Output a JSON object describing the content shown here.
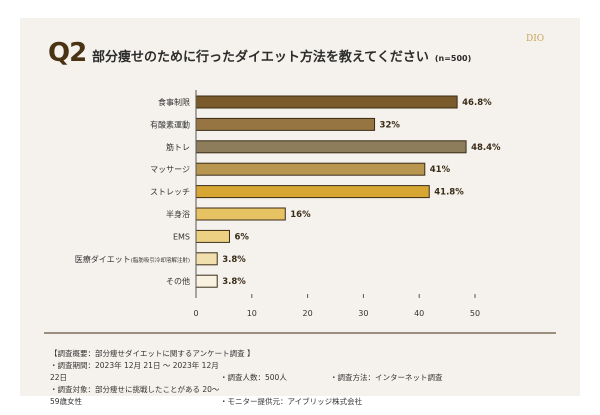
{
  "header": {
    "q": "Q2",
    "title": "部分痩せのために行ったダイエット方法を教えてください",
    "n": "(n=500)",
    "logo": "DIO"
  },
  "chart_data": {
    "type": "bar",
    "orientation": "horizontal",
    "title": "部分痩せのために行ったダイエット方法を教えてください",
    "categories": [
      "食事制限",
      "有酸素運動",
      "筋トレ",
      "マッサージ",
      "ストレッチ",
      "半身浴",
      "EMS",
      "医療ダイエット",
      "その他"
    ],
    "category_notes": [
      "",
      "",
      "",
      "",
      "",
      "",
      "",
      "(脂肪吸引冷却溶解注射)",
      ""
    ],
    "values": [
      46.8,
      32,
      48.4,
      41,
      41.8,
      16,
      6,
      3.8,
      3.8
    ],
    "labels": [
      "46.8%",
      "32%",
      "48.4%",
      "41%",
      "41.8%",
      "16%",
      "6%",
      "3.8%",
      "3.8%"
    ],
    "colors": [
      "#7a5a2a",
      "#967543",
      "#8e7d5b",
      "#b8964f",
      "#d8a632",
      "#e7c262",
      "#ecd183",
      "#f1e0ad",
      "#f9f2e0"
    ],
    "xlim": [
      0,
      50
    ],
    "xticks": [
      "0",
      "10",
      "20",
      "30",
      "40",
      "50"
    ],
    "xlabel": "",
    "ylabel": ""
  },
  "footer": {
    "heading": "【調査概要：部分痩せダイエットに関するアンケート調査 】",
    "period": "・調査期間：2023年 12月 21日 ～ 2023年 12月 22日",
    "count": "・調査人数：500人",
    "method": "・調査方法：インターネット調査",
    "target": "・調査対象：部分痩せに挑戦したことがある 20～ 59歳女性",
    "provider": "・モニター提供元：アイブリッジ株式会社"
  }
}
